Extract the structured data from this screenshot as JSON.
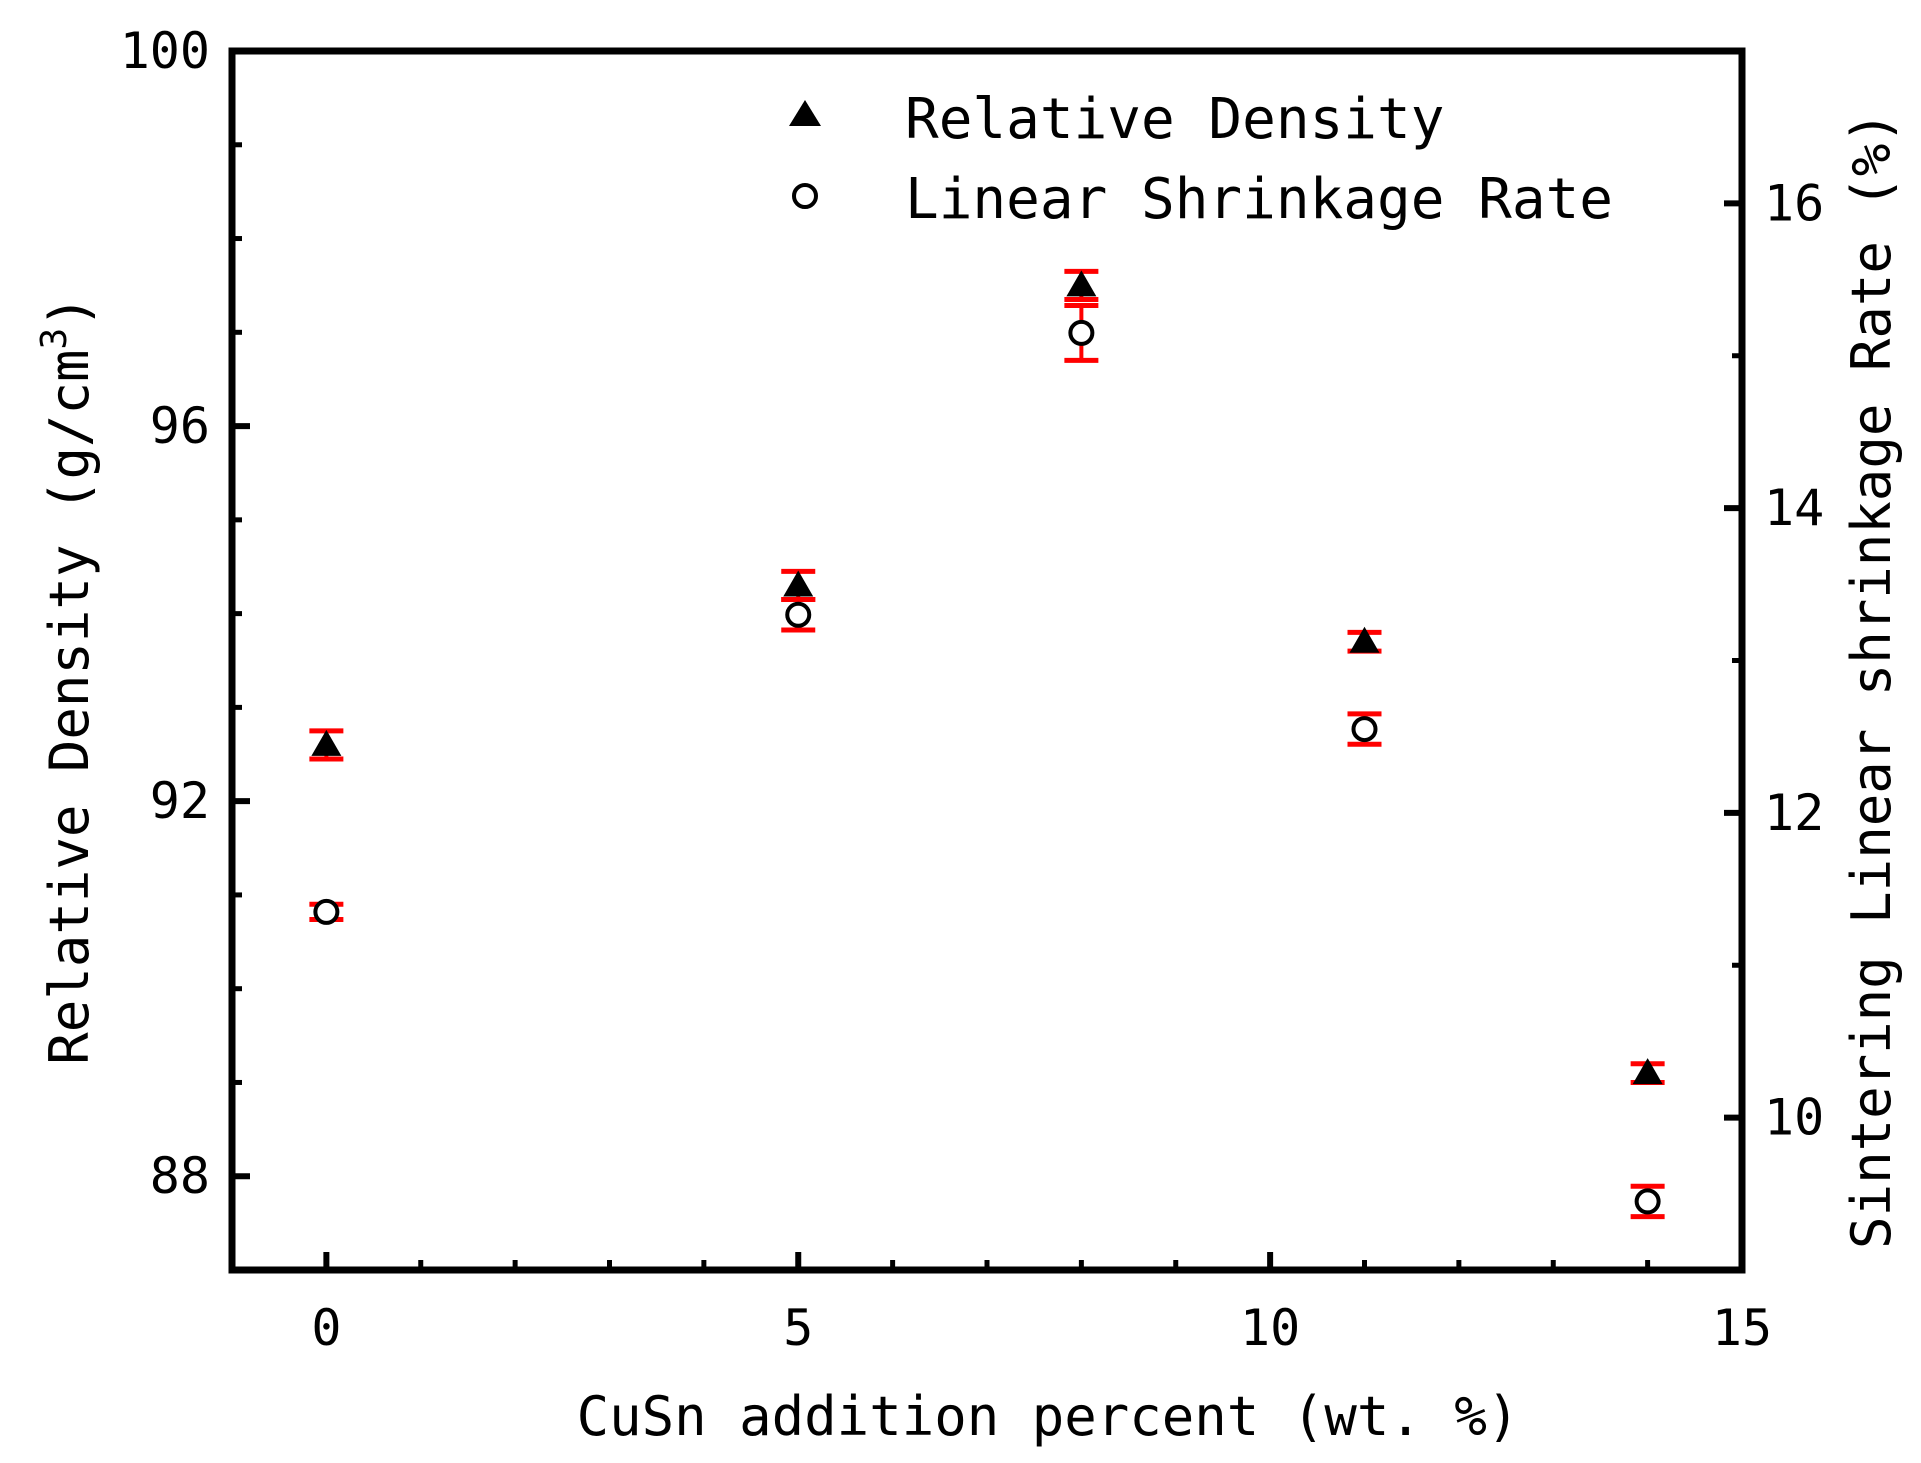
{
  "chart_data": {
    "type": "scatter",
    "xlabel": "CuSn addition percent (wt. %)",
    "ylabel_left": "Relative Density (g/cm",
    "ylabel_left_sup": "3",
    "ylabel_left_close": ")",
    "ylabel_right": "Sintering Linear shrinkage Rate (%)",
    "xlim": [
      -1,
      15
    ],
    "ylim_left": [
      87,
      100
    ],
    "ylim_right": [
      9,
      17
    ],
    "x_ticks": [
      0,
      5,
      10,
      15
    ],
    "x_tick_labels": [
      "0",
      "5",
      "10",
      "15"
    ],
    "y_left_ticks": [
      88,
      92,
      96,
      100
    ],
    "y_left_tick_labels": [
      "88",
      "92",
      "96",
      "100"
    ],
    "y_right_ticks": [
      10,
      12,
      14,
      16
    ],
    "y_right_tick_labels": [
      "10",
      "12",
      "14",
      "16"
    ],
    "series": [
      {
        "name": "Relative Density",
        "axis": "left",
        "marker": "filled-triangle",
        "x": [
          0,
          5,
          8,
          11,
          14
        ],
        "y": [
          92.6,
          94.3,
          97.5,
          93.7,
          89.1
        ],
        "err": [
          0.15,
          0.15,
          0.15,
          0.1,
          0.1
        ]
      },
      {
        "name": "Linear Shrinkage Rate",
        "axis": "right",
        "marker": "open-circle",
        "x": [
          0,
          5,
          8,
          11,
          14
        ],
        "y": [
          11.35,
          13.3,
          15.15,
          12.55,
          9.45
        ],
        "err": [
          0.05,
          0.1,
          0.18,
          0.1,
          0.1
        ]
      }
    ],
    "legend_position": "top-center",
    "colors": {
      "axis": "#000000",
      "marker": "#000000",
      "error_bar": "#ff0000"
    }
  }
}
